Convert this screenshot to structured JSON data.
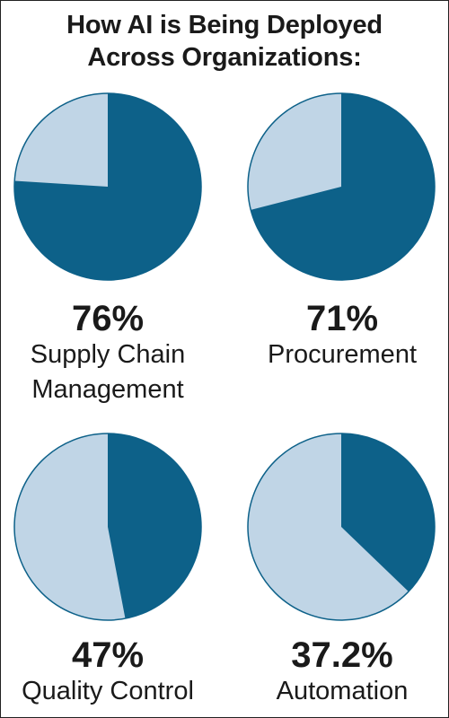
{
  "title_lines": [
    "How AI is Being Deployed",
    "Across Organizations:"
  ],
  "colors": {
    "primary": "#0d6189",
    "secondary": "#c0d5e6",
    "outline": "#0d6189"
  },
  "chart_data": {
    "type": "pie",
    "title": "How AI is Being Deployed Across Organizations:",
    "charts": [
      {
        "value": 76,
        "percent_label": "76%",
        "label_lines": [
          "Supply Chain",
          "Management"
        ]
      },
      {
        "value": 71,
        "percent_label": "71%",
        "label_lines": [
          "Procurement"
        ]
      },
      {
        "value": 47,
        "percent_label": "47%",
        "label_lines": [
          "Quality Control"
        ]
      },
      {
        "value": 37.2,
        "percent_label": "37.2%",
        "label_lines": [
          "Automation"
        ]
      }
    ]
  }
}
